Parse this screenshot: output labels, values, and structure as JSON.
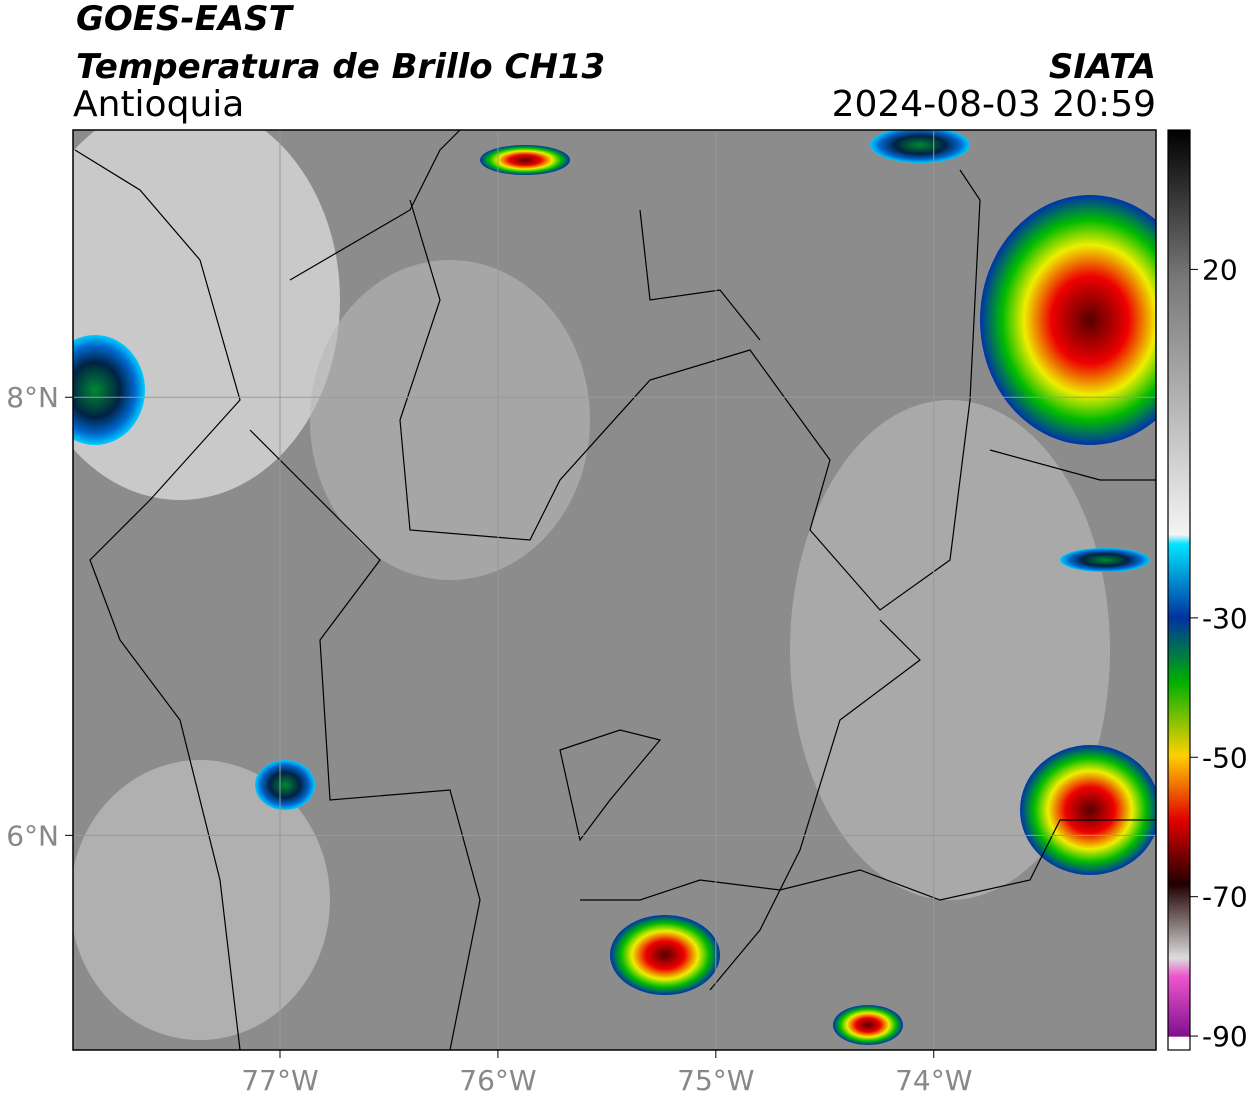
{
  "header": {
    "title": "GOES-EAST",
    "subtitle": "Temperatura de Brillo CH13",
    "region": "Antioquia",
    "source": "SIATA",
    "datetime": "2024-08-03 20:59"
  },
  "map": {
    "xlim": [
      -77.95,
      -72.98
    ],
    "ylim": [
      5.02,
      9.22
    ],
    "xticks": [
      {
        "value": -77,
        "label": "77°W"
      },
      {
        "value": -76,
        "label": "76°W"
      },
      {
        "value": -75,
        "label": "75°W"
      },
      {
        "value": -74,
        "label": "74°W"
      }
    ],
    "yticks": [
      {
        "value": 8,
        "label": "8°N"
      },
      {
        "value": 6,
        "label": "6°N"
      }
    ],
    "grid": true
  },
  "colorbar": {
    "lim": [
      -92,
      40
    ],
    "ticks": [
      20,
      -30,
      -50,
      -70,
      -90
    ]
  }
}
